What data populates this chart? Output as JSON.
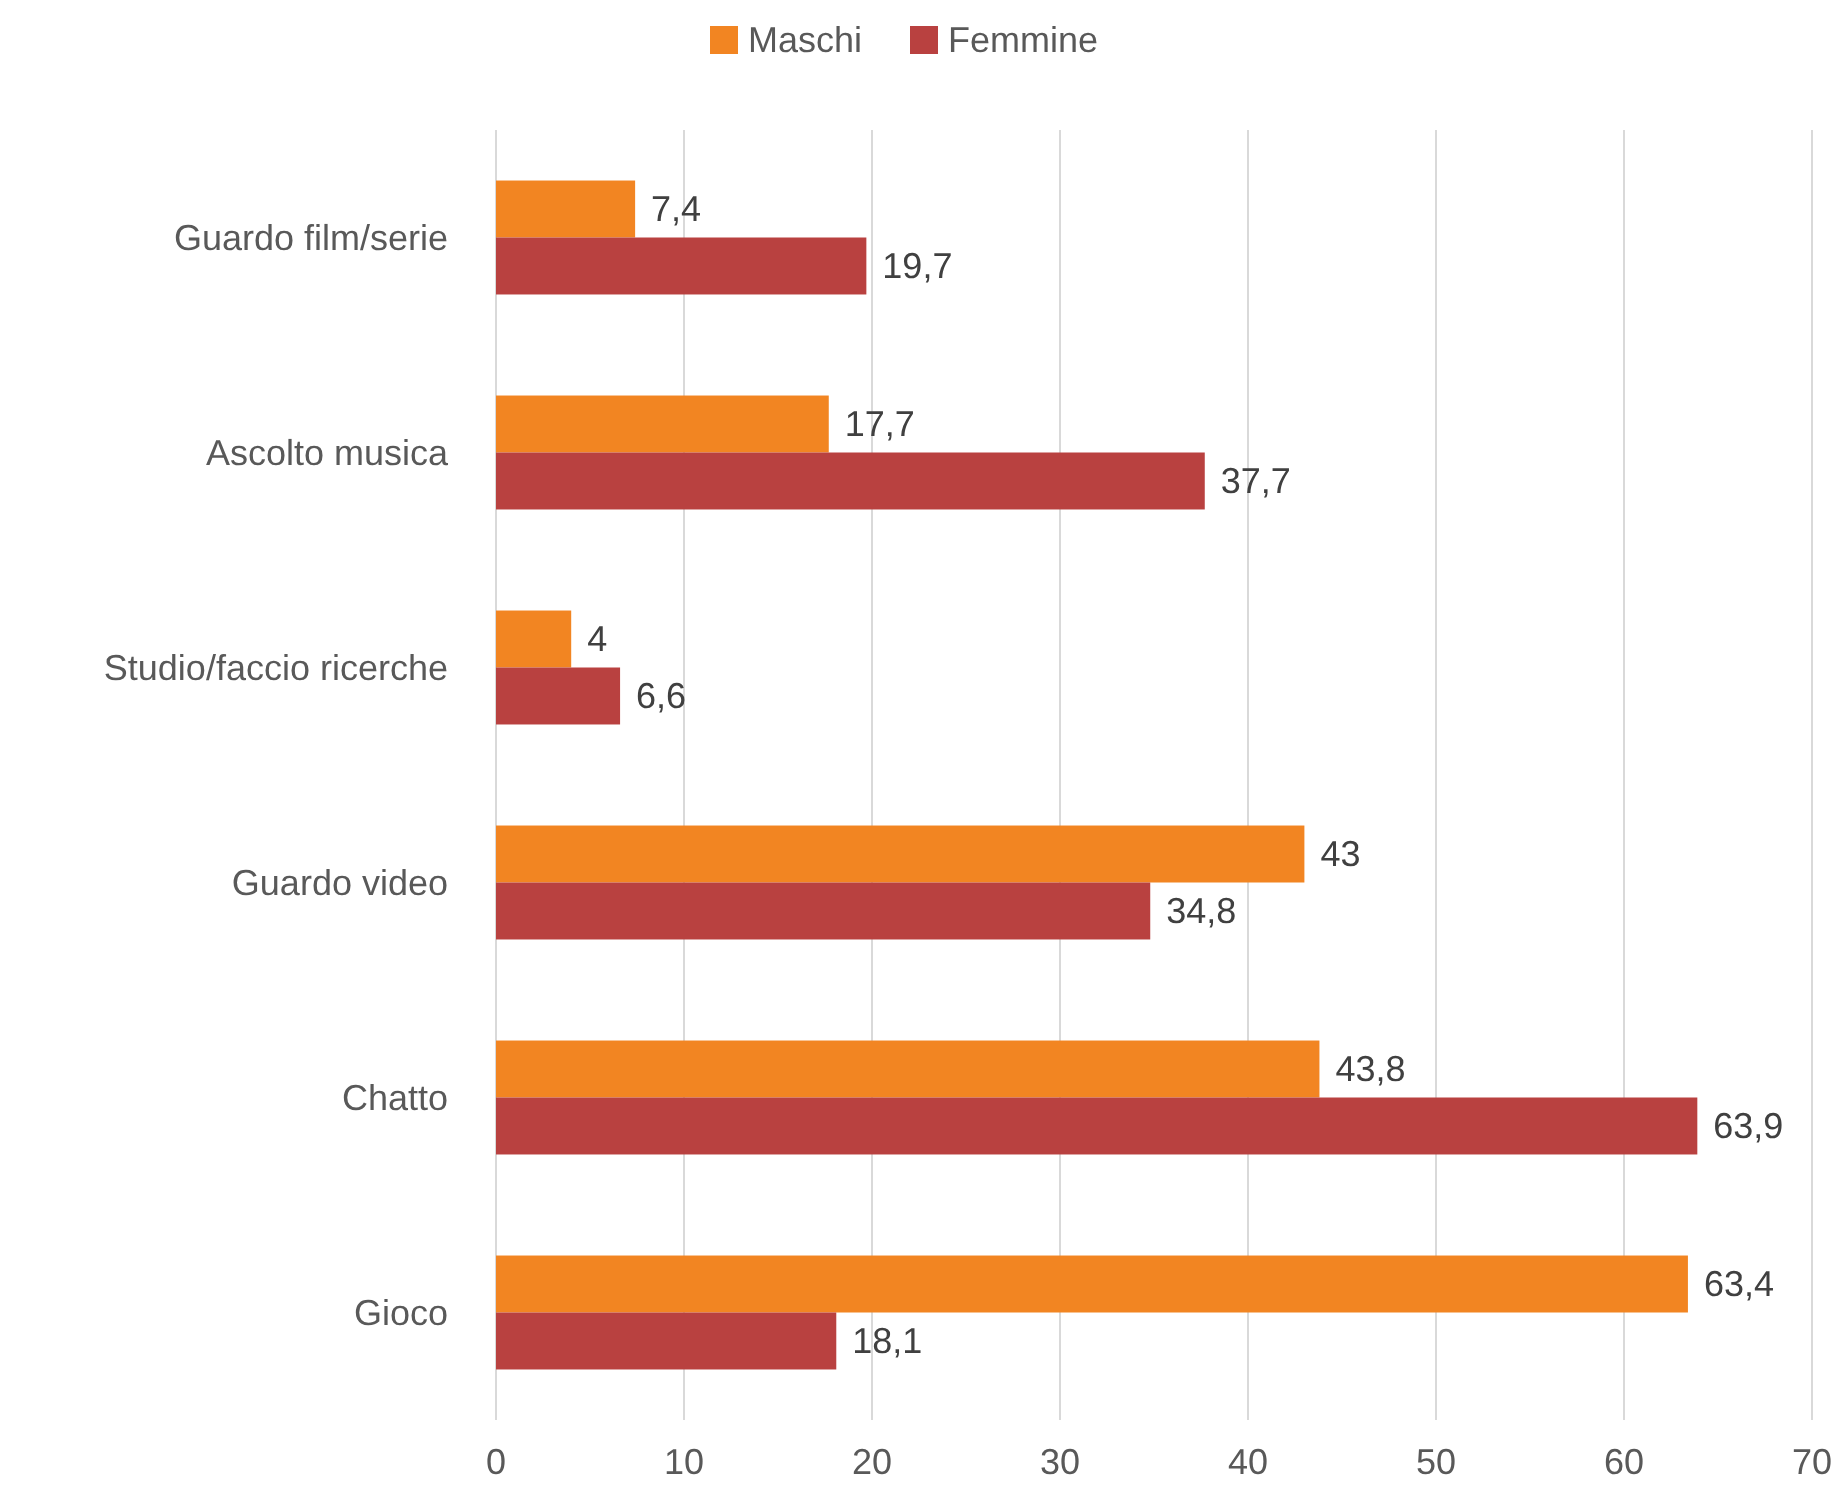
{
  "chart_data": {
    "type": "bar",
    "orientation": "horizontal",
    "categories": [
      "Guardo film/serie",
      "Ascolto musica",
      "Studio/faccio ricerche",
      "Guardo video",
      "Chatto",
      "Gioco"
    ],
    "series": [
      {
        "name": "Maschi",
        "color": "#f28522",
        "values": [
          7.4,
          17.7,
          4,
          43,
          43.8,
          63.4
        ],
        "value_labels": [
          "7,4",
          "17,7",
          "4",
          "43",
          "43,8",
          "63,4"
        ]
      },
      {
        "name": "Femmine",
        "color": "#b94140",
        "values": [
          19.7,
          37.7,
          6.6,
          34.8,
          63.9,
          18.1
        ],
        "value_labels": [
          "19,7",
          "37,7",
          "6,6",
          "34,8",
          "63,9",
          "18,1"
        ]
      }
    ],
    "xlim": [
      0,
      70
    ],
    "xticks": [
      0,
      10,
      20,
      30,
      40,
      50,
      60,
      70
    ],
    "grid": "x",
    "legend": "top"
  }
}
